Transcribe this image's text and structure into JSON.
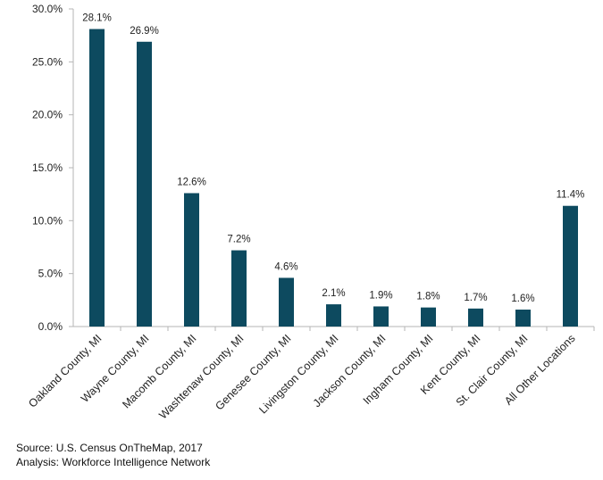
{
  "chart_data": {
    "type": "bar",
    "categories": [
      "Oakland County, MI",
      "Wayne County, MI",
      "Macomb County, MI",
      "Washtenaw County, MI",
      "Genesee County, MI",
      "Livingston County, MI",
      "Jackson County, MI",
      "Ingham County, MI",
      "Kent County, MI",
      "St. Clair County, MI",
      "All Other Locations"
    ],
    "values": [
      28.1,
      26.9,
      12.6,
      7.2,
      4.6,
      2.1,
      1.9,
      1.8,
      1.7,
      1.6,
      11.4
    ],
    "data_labels": [
      "28.1%",
      "26.9%",
      "12.6%",
      "7.2%",
      "4.6%",
      "2.1%",
      "1.9%",
      "1.8%",
      "1.7%",
      "1.6%",
      "11.4%"
    ],
    "y_ticks": [
      0,
      5,
      10,
      15,
      20,
      25,
      30
    ],
    "y_tick_labels": [
      "0.0%",
      "5.0%",
      "10.0%",
      "15.0%",
      "20.0%",
      "25.0%",
      "30.0%"
    ],
    "ylim": [
      0,
      30
    ],
    "grid": false,
    "legend": "none",
    "bar_color": "#0d4a5f"
  },
  "footer": {
    "source": "Source: U.S. Census OnTheMap, 2017",
    "analysis": "Analysis: Workforce Intelligence Network"
  }
}
